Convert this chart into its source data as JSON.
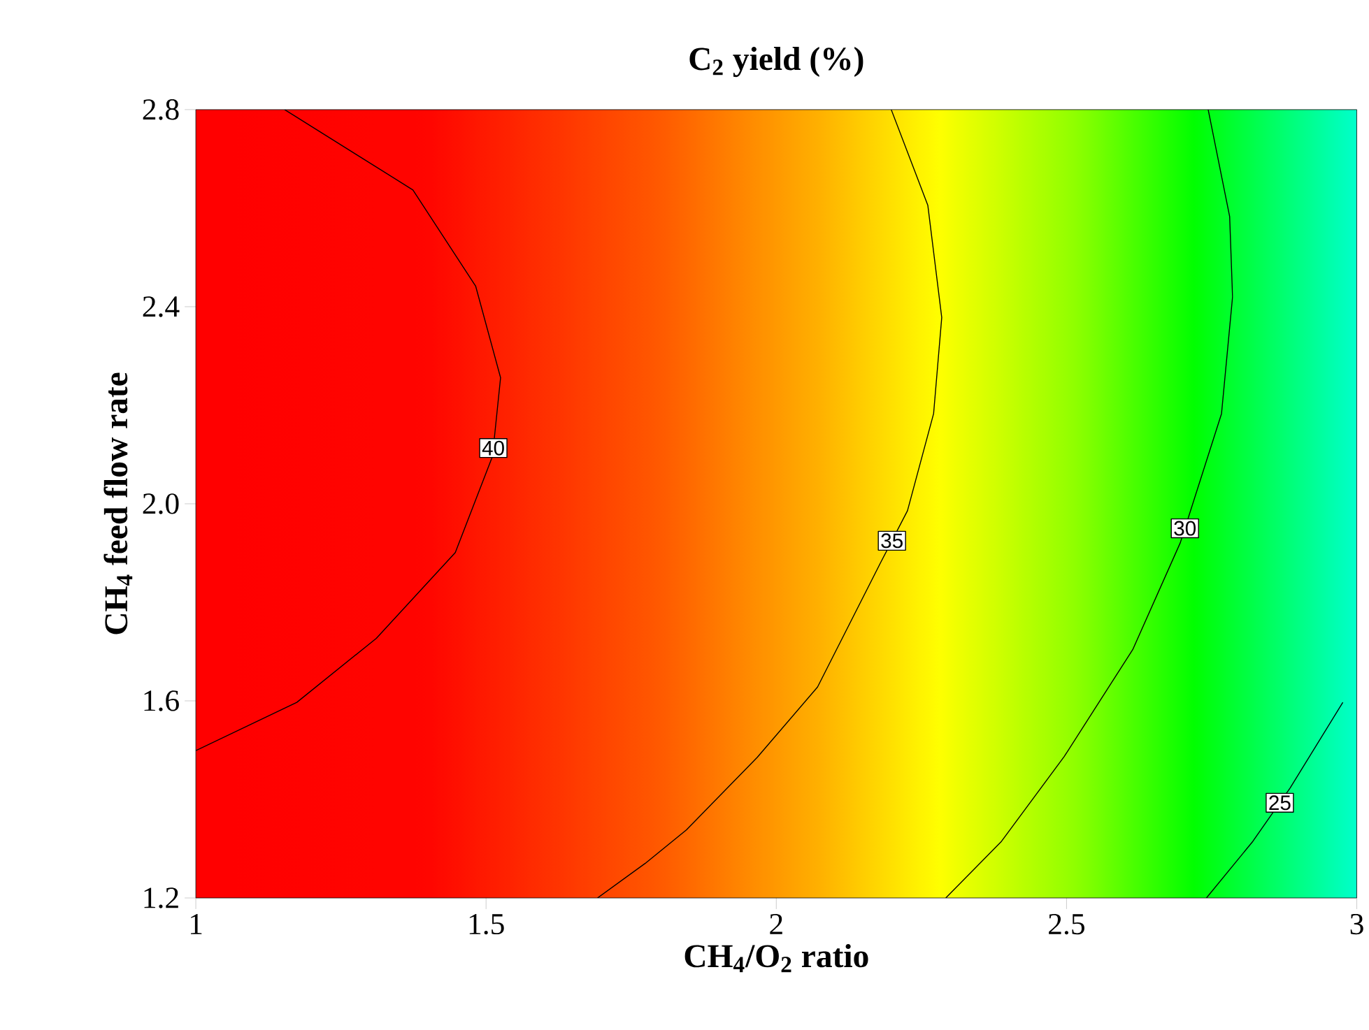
{
  "chart_data": {
    "type": "line",
    "title": "C$_{2}$ yield (%)",
    "xlabel": "CH$_{4}$/O$_{2}$ ratio",
    "ylabel": "CH$_{4}$ feed flow rate",
    "xlim": [
      1,
      3
    ],
    "ylim": [
      1.2,
      2.8
    ],
    "xticks": [
      1,
      1.5,
      2,
      2.5,
      3
    ],
    "yticks": [
      1.2,
      1.6,
      {
        "value": 2.0,
        "label": "2.0"
      },
      2.4,
      2.8
    ],
    "grid": false,
    "legend": false,
    "series": [
      {
        "name": "40",
        "color": "#000000",
        "x": [
          1.153,
          1.374,
          1.482,
          1.525,
          1.511,
          1.447,
          1.311,
          1.174,
          1.0
        ],
        "values": [
          2.8,
          2.637,
          2.442,
          2.256,
          2.096,
          1.901,
          1.727,
          1.597,
          1.499
        ]
      },
      {
        "name": "35",
        "color": "#000000",
        "x": [
          1.692,
          1.774,
          1.845,
          1.967,
          2.071,
          2.179,
          2.226,
          2.271,
          2.285,
          2.261,
          2.198
        ],
        "values": [
          1.2,
          1.27,
          1.338,
          1.485,
          1.628,
          1.879,
          1.986,
          2.183,
          2.378,
          2.606,
          2.8
        ]
      },
      {
        "name": "30",
        "color": "#000000",
        "x": [
          2.292,
          2.388,
          2.496,
          2.614,
          2.696,
          2.767,
          2.786,
          2.781,
          2.744
        ],
        "values": [
          1.2,
          1.315,
          1.487,
          1.704,
          1.921,
          2.183,
          2.42,
          2.583,
          2.8
        ]
      },
      {
        "name": "25",
        "color": "#000000",
        "x": [
          2.741,
          2.821,
          2.885,
          2.976
        ],
        "values": [
          1.2,
          1.315,
          1.423,
          1.597
        ]
      }
    ]
  }
}
